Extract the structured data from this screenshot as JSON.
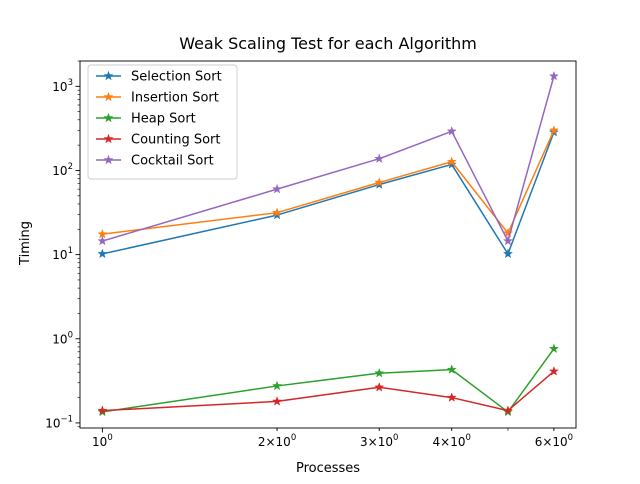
{
  "chart_data": {
    "type": "line",
    "title": "Weak Scaling Test for each Algorithm",
    "xlabel": "Processes",
    "ylabel": "Timing",
    "x_scale": "log",
    "y_scale": "log",
    "xlim": [
      0.915,
      6.55
    ],
    "ylim": [
      0.087,
      2000
    ],
    "x": [
      1,
      2,
      3,
      4,
      5,
      6
    ],
    "x_tick_labels": [
      {
        "value": 1,
        "base": "10",
        "exp": "0"
      },
      {
        "value": 2,
        "base": "2×10",
        "exp": "0"
      },
      {
        "value": 3,
        "base": "3×10",
        "exp": "0"
      },
      {
        "value": 4,
        "base": "4×10",
        "exp": "0"
      },
      {
        "value": 6,
        "base": "6×10",
        "exp": "0"
      }
    ],
    "y_tick_labels": [
      {
        "value": 0.1,
        "base": "10",
        "exp": "−1"
      },
      {
        "value": 1,
        "base": "10",
        "exp": "0"
      },
      {
        "value": 10,
        "base": "10",
        "exp": "1"
      },
      {
        "value": 100,
        "base": "10",
        "exp": "2"
      },
      {
        "value": 1000,
        "base": "10",
        "exp": "3"
      }
    ],
    "marker": "star",
    "grid": false,
    "legend_position": "top-left",
    "series": [
      {
        "name": "Selection Sort",
        "color": "#1f77b4",
        "values": [
          10.2,
          29.5,
          68,
          118,
          10.2,
          285
        ]
      },
      {
        "name": "Insertion Sort",
        "color": "#ff7f0e",
        "values": [
          17.5,
          31.5,
          72,
          127,
          18,
          300
        ]
      },
      {
        "name": "Heap Sort",
        "color": "#2ca02c",
        "values": [
          0.135,
          0.275,
          0.39,
          0.43,
          0.135,
          0.76
        ]
      },
      {
        "name": "Counting Sort",
        "color": "#d62728",
        "values": [
          0.14,
          0.18,
          0.265,
          0.2,
          0.14,
          0.41
        ]
      },
      {
        "name": "Cocktail Sort",
        "color": "#9467bd",
        "values": [
          14.5,
          60,
          138,
          292,
          14.5,
          1320
        ]
      }
    ]
  }
}
